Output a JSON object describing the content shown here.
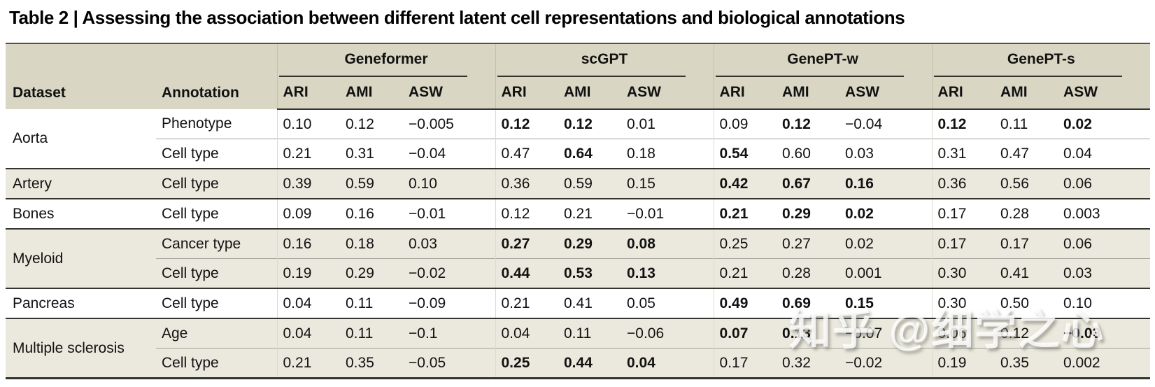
{
  "title": "Table 2 | Assessing the association between different latent cell representations and biological annotations",
  "watermark": "知乎 @细学之心",
  "colors": {
    "header_bg": "#d9d6c3",
    "row_shade": "#ebe9dd",
    "rule_dark": "#35342e",
    "rule_light": "#a5a399",
    "text": "#111111",
    "watermark_fill": "rgba(255,255,255,0.82)"
  },
  "table": {
    "dataset_label": "Dataset",
    "annotation_label": "Annotation",
    "groups": [
      {
        "label": "Geneformer",
        "metrics": [
          "ARI",
          "AMI",
          "ASW"
        ]
      },
      {
        "label": "scGPT",
        "metrics": [
          "ARI",
          "AMI",
          "ASW"
        ]
      },
      {
        "label": "GenePT-w",
        "metrics": [
          "ARI",
          "AMI",
          "ASW"
        ]
      },
      {
        "label": "GenePT-s",
        "metrics": [
          "ARI",
          "AMI",
          "ASW"
        ]
      }
    ],
    "rows": [
      {
        "dataset": "Aorta",
        "span": 2,
        "annotation": "Phenotype",
        "shaded": false,
        "divider": "none",
        "values": [
          "0.10",
          "0.12",
          "−0.005",
          "0.12",
          "0.12",
          "0.01",
          "0.09",
          "0.12",
          "−0.04",
          "0.12",
          "0.11",
          "0.02"
        ],
        "bold": [
          0,
          0,
          0,
          1,
          1,
          0,
          0,
          1,
          0,
          1,
          0,
          1
        ]
      },
      {
        "dataset": null,
        "span": 0,
        "annotation": "Cell type",
        "shaded": false,
        "divider": "inner",
        "values": [
          "0.21",
          "0.31",
          "−0.04",
          "0.47",
          "0.64",
          "0.18",
          "0.54",
          "0.60",
          "0.03",
          "0.31",
          "0.47",
          "0.04"
        ],
        "bold": [
          0,
          0,
          0,
          0,
          1,
          0,
          1,
          0,
          0,
          0,
          0,
          0
        ]
      },
      {
        "dataset": "Artery",
        "span": 1,
        "annotation": "Cell type",
        "shaded": true,
        "divider": "group",
        "values": [
          "0.39",
          "0.59",
          "0.10",
          "0.36",
          "0.59",
          "0.15",
          "0.42",
          "0.67",
          "0.16",
          "0.36",
          "0.56",
          "0.06"
        ],
        "bold": [
          0,
          0,
          0,
          0,
          0,
          0,
          1,
          1,
          1,
          0,
          0,
          0
        ]
      },
      {
        "dataset": "Bones",
        "span": 1,
        "annotation": "Cell type",
        "shaded": false,
        "divider": "group",
        "values": [
          "0.09",
          "0.16",
          "−0.01",
          "0.12",
          "0.21",
          "−0.01",
          "0.21",
          "0.29",
          "0.02",
          "0.17",
          "0.28",
          "0.003"
        ],
        "bold": [
          0,
          0,
          0,
          0,
          0,
          0,
          1,
          1,
          1,
          0,
          0,
          0
        ]
      },
      {
        "dataset": "Myeloid",
        "span": 2,
        "annotation": "Cancer type",
        "shaded": true,
        "divider": "group",
        "values": [
          "0.16",
          "0.18",
          "0.03",
          "0.27",
          "0.29",
          "0.08",
          "0.25",
          "0.27",
          "0.02",
          "0.17",
          "0.17",
          "0.06"
        ],
        "bold": [
          0,
          0,
          0,
          1,
          1,
          1,
          0,
          0,
          0,
          0,
          0,
          0
        ]
      },
      {
        "dataset": null,
        "span": 0,
        "annotation": "Cell type",
        "shaded": true,
        "divider": "inner",
        "values": [
          "0.19",
          "0.29",
          "−0.02",
          "0.44",
          "0.53",
          "0.13",
          "0.21",
          "0.28",
          "0.001",
          "0.30",
          "0.41",
          "0.03"
        ],
        "bold": [
          0,
          0,
          0,
          1,
          1,
          1,
          0,
          0,
          0,
          0,
          0,
          0
        ]
      },
      {
        "dataset": "Pancreas",
        "span": 1,
        "annotation": "Cell type",
        "shaded": false,
        "divider": "group",
        "values": [
          "0.04",
          "0.11",
          "−0.09",
          "0.21",
          "0.41",
          "0.05",
          "0.49",
          "0.69",
          "0.15",
          "0.30",
          "0.50",
          "0.10"
        ],
        "bold": [
          0,
          0,
          0,
          0,
          0,
          0,
          1,
          1,
          1,
          0,
          0,
          0
        ]
      },
      {
        "dataset": "Multiple sclerosis",
        "span": 2,
        "annotation": "Age",
        "shaded": true,
        "divider": "group",
        "values": [
          "0.04",
          "0.11",
          "−0.1",
          "0.04",
          "0.11",
          "−0.06",
          "0.07",
          "0.13",
          "−0.07",
          "0.06",
          "0.12",
          "−0.03"
        ],
        "bold": [
          0,
          0,
          0,
          0,
          0,
          0,
          1,
          1,
          0,
          0,
          0,
          1
        ]
      },
      {
        "dataset": null,
        "span": 0,
        "annotation": "Cell type",
        "shaded": true,
        "divider": "inner",
        "values": [
          "0.21",
          "0.35",
          "−0.05",
          "0.25",
          "0.44",
          "0.04",
          "0.17",
          "0.32",
          "−0.02",
          "0.19",
          "0.35",
          "0.002"
        ],
        "bold": [
          0,
          0,
          0,
          1,
          1,
          1,
          0,
          0,
          0,
          0,
          0,
          0
        ]
      }
    ]
  }
}
